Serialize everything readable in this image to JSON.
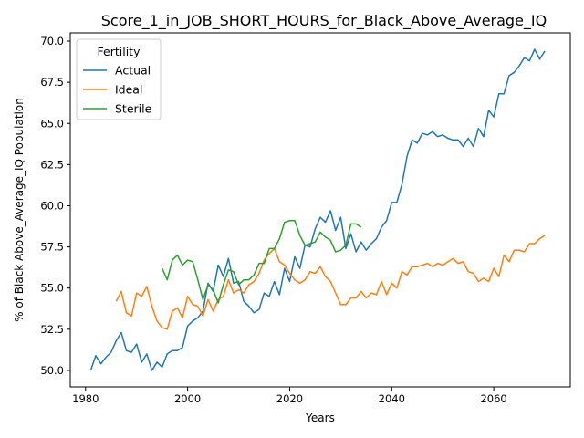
{
  "chart_data": {
    "type": "line",
    "title": "Score_1_in_JOB_SHORT_HOURS_for_Black_Above_Average_IQ",
    "xlabel": "Years",
    "ylabel": "% of Black Above_Average_IQ Population",
    "xlim": [
      1977,
      2075
    ],
    "ylim": [
      49.0,
      70.5
    ],
    "xticks": [
      1980,
      2000,
      2020,
      2040,
      2060
    ],
    "yticks": [
      50.0,
      52.5,
      55.0,
      57.5,
      60.0,
      62.5,
      65.0,
      67.5,
      70.0
    ],
    "grid": false,
    "legend": {
      "title": "Fertility",
      "placement": "upper left"
    },
    "series": [
      {
        "name": "Actual",
        "color": "#1f77b4",
        "x": [
          1981,
          1982,
          1983,
          1984,
          1985,
          1986,
          1987,
          1988,
          1989,
          1990,
          1991,
          1992,
          1993,
          1994,
          1995,
          1996,
          1997,
          1998,
          1999,
          2000,
          2001,
          2002,
          2003,
          2004,
          2005,
          2006,
          2007,
          2008,
          2009,
          2010,
          2011,
          2012,
          2013,
          2014,
          2015,
          2016,
          2017,
          2018,
          2019,
          2020,
          2021,
          2022,
          2023,
          2024,
          2025,
          2026,
          2027,
          2028,
          2029,
          2030,
          2031,
          2032,
          2033,
          2034,
          2035,
          2036,
          2037,
          2038,
          2039,
          2040,
          2041,
          2042,
          2043,
          2044,
          2045,
          2046,
          2047,
          2048,
          2049,
          2050,
          2051,
          2052,
          2053,
          2054,
          2055,
          2056,
          2057,
          2058,
          2059,
          2060,
          2061,
          2062,
          2063,
          2064,
          2065,
          2066,
          2067,
          2068,
          2069,
          2070
        ],
        "values": [
          50.0,
          50.9,
          50.4,
          50.8,
          51.1,
          51.8,
          52.3,
          51.2,
          51.1,
          51.6,
          50.5,
          51.0,
          50.0,
          50.5,
          50.2,
          51.0,
          51.2,
          51.2,
          51.4,
          52.7,
          53.0,
          53.2,
          53.6,
          55.3,
          54.8,
          56.4,
          55.7,
          56.8,
          55.3,
          55.4,
          54.2,
          53.9,
          53.5,
          53.7,
          54.7,
          54.5,
          55.4,
          54.6,
          56.2,
          55.4,
          56.9,
          56.2,
          57.6,
          57.5,
          58.6,
          59.3,
          59.0,
          59.7,
          58.5,
          59.3,
          57.4,
          58.3,
          57.2,
          57.8,
          57.3,
          57.7,
          58.0,
          58.7,
          59.1,
          60.2,
          60.2,
          61.3,
          63.0,
          64.0,
          63.8,
          64.4,
          64.3,
          64.5,
          64.2,
          64.3,
          64.1,
          64.0,
          64.0,
          63.6,
          64.1,
          63.6,
          64.7,
          64.2,
          65.8,
          65.4,
          66.8,
          66.8,
          67.9,
          68.1,
          68.5,
          69.0,
          68.8,
          69.5,
          68.9,
          69.4
        ]
      },
      {
        "name": "Ideal",
        "color": "#ff7f0e",
        "x": [
          1986,
          1987,
          1988,
          1989,
          1990,
          1991,
          1992,
          1993,
          1994,
          1995,
          1996,
          1997,
          1998,
          1999,
          2000,
          2001,
          2002,
          2003,
          2004,
          2005,
          2006,
          2007,
          2008,
          2009,
          2010,
          2011,
          2012,
          2013,
          2014,
          2015,
          2016,
          2017,
          2018,
          2019,
          2020,
          2021,
          2022,
          2023,
          2024,
          2025,
          2026,
          2027,
          2028,
          2029,
          2030,
          2031,
          2032,
          2033,
          2034,
          2035,
          2036,
          2037,
          2038,
          2039,
          2040,
          2041,
          2042,
          2043,
          2044,
          2045,
          2046,
          2047,
          2048,
          2049,
          2050,
          2051,
          2052,
          2053,
          2054,
          2055,
          2056,
          2057,
          2058,
          2059,
          2060,
          2061,
          2062,
          2063,
          2064,
          2065,
          2066,
          2067,
          2068,
          2069,
          2070
        ],
        "values": [
          54.2,
          54.8,
          53.5,
          53.3,
          54.7,
          54.5,
          55.1,
          53.9,
          53.0,
          52.6,
          52.5,
          53.6,
          53.8,
          53.2,
          54.5,
          54.0,
          53.9,
          53.3,
          54.3,
          53.6,
          54.3,
          54.5,
          55.5,
          54.7,
          54.9,
          54.7,
          55.2,
          55.4,
          55.9,
          56.7,
          57.1,
          57.4,
          56.6,
          56.4,
          55.9,
          55.5,
          55.3,
          55.5,
          56.0,
          55.9,
          56.3,
          55.7,
          55.4,
          54.7,
          54.0,
          54.0,
          54.4,
          54.4,
          54.8,
          54.4,
          54.7,
          54.6,
          55.4,
          54.6,
          55.3,
          55.0,
          56.0,
          55.8,
          56.3,
          56.3,
          56.4,
          56.5,
          56.3,
          56.5,
          56.4,
          56.6,
          56.8,
          56.5,
          56.6,
          56.0,
          55.9,
          55.4,
          55.6,
          55.4,
          56.2,
          55.7,
          57.0,
          56.6,
          57.3,
          57.3,
          57.2,
          57.7,
          57.7,
          58.0,
          58.2
        ]
      },
      {
        "name": "Sterile",
        "color": "#2ca02c",
        "x": [
          1995,
          1996,
          1997,
          1998,
          1999,
          2000,
          2001,
          2002,
          2003,
          2004,
          2005,
          2006,
          2007,
          2008,
          2009,
          2010,
          2011,
          2012,
          2013,
          2014,
          2015,
          2016,
          2017,
          2018,
          2019,
          2020,
          2021,
          2022,
          2023,
          2024,
          2025,
          2026,
          2027,
          2028,
          2029,
          2030,
          2031,
          2032,
          2033,
          2034
        ],
        "values": [
          56.2,
          55.5,
          56.7,
          57.0,
          56.4,
          56.7,
          56.6,
          55.5,
          54.3,
          55.2,
          54.9,
          54.1,
          55.2,
          56.1,
          56.0,
          55.2,
          55.5,
          55.5,
          55.8,
          56.5,
          56.5,
          57.4,
          57.4,
          58.0,
          59.0,
          59.1,
          59.1,
          58.2,
          57.6,
          57.7,
          57.8,
          58.4,
          58.1,
          57.9,
          57.2,
          57.3,
          57.6,
          58.9,
          58.9,
          58.7
        ]
      }
    ]
  }
}
